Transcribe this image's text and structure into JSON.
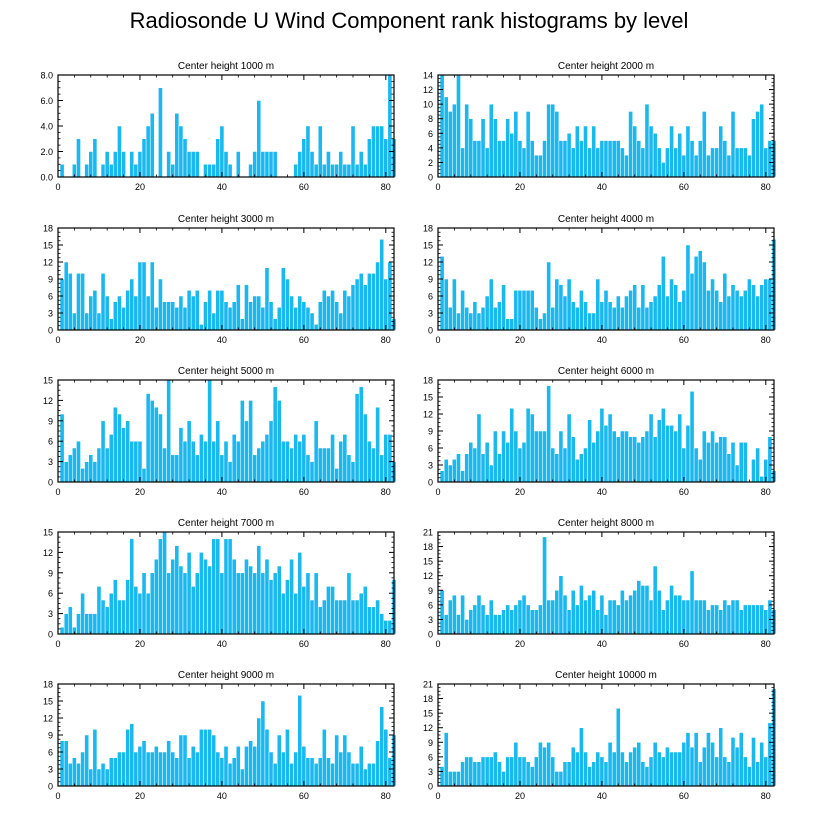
{
  "title": "Radiosonde U Wind Component rank histograms by level",
  "colors": {
    "bar": "#19b8ef",
    "bar_edge": "#0a84b8",
    "axis": "#000000"
  },
  "chart_data": [
    {
      "type": "bar",
      "title": "Center height 1000 m",
      "xlim": [
        0,
        82
      ],
      "ylim": [
        0,
        8
      ],
      "xticks": [
        0,
        20,
        40,
        60,
        80
      ],
      "yticks": [
        0,
        2,
        4,
        6,
        8
      ],
      "ytick_labels": [
        "0.0",
        "2.0",
        "4.0",
        "6.0",
        "8.0"
      ],
      "values": [
        1,
        0,
        0,
        1,
        3,
        0,
        1,
        2,
        3,
        0,
        1,
        2,
        1,
        2,
        4,
        2,
        0,
        2,
        1,
        2,
        3,
        4,
        5,
        0,
        7,
        0,
        2,
        1,
        5,
        4,
        3,
        2,
        2,
        2,
        0,
        1,
        1,
        1,
        3,
        4,
        2,
        1,
        0,
        2,
        0,
        0,
        1,
        2,
        6,
        2,
        2,
        2,
        2,
        0,
        0,
        0,
        0,
        1,
        2,
        3,
        4,
        2,
        1,
        4,
        1,
        2,
        1,
        1,
        2,
        1,
        1,
        4,
        1,
        2,
        1,
        3,
        4,
        4,
        4,
        3,
        8,
        3
      ]
    },
    {
      "type": "bar",
      "title": "Center height 2000 m",
      "xlim": [
        0,
        82
      ],
      "ylim": [
        0,
        14
      ],
      "xticks": [
        0,
        20,
        40,
        60,
        80
      ],
      "yticks": [
        0,
        2,
        4,
        6,
        8,
        10,
        12,
        14
      ],
      "ytick_labels": [
        "0",
        "2",
        "4",
        "6",
        "8",
        "10",
        "12",
        "14"
      ],
      "values": [
        14,
        11,
        9,
        10,
        14,
        4,
        10,
        8,
        5,
        5,
        8,
        4,
        10,
        8,
        5,
        5,
        8,
        6,
        9,
        5,
        4,
        9,
        5,
        3,
        3,
        5,
        10,
        10,
        9,
        5,
        5,
        6,
        4,
        7,
        5,
        7,
        4,
        7,
        4,
        5,
        5,
        5,
        5,
        5,
        4,
        3,
        9,
        7,
        5,
        4,
        10,
        7,
        6,
        4,
        2,
        4,
        7,
        4,
        6,
        3,
        7,
        5,
        3,
        5,
        9,
        3,
        4,
        4,
        7,
        5,
        3,
        9,
        4,
        4,
        4,
        3,
        8,
        9,
        10,
        4,
        5,
        5
      ]
    },
    {
      "type": "bar",
      "title": "Center height 3000 m",
      "xlim": [
        0,
        82
      ],
      "ylim": [
        0,
        18
      ],
      "xticks": [
        0,
        20,
        40,
        60,
        80
      ],
      "yticks": [
        0,
        3,
        6,
        9,
        12,
        15,
        18
      ],
      "ytick_labels": [
        "0",
        "3",
        "6",
        "9",
        "12",
        "15",
        "18"
      ],
      "values": [
        9,
        12,
        10,
        3,
        10,
        10,
        3,
        6,
        7,
        3,
        10,
        6,
        2,
        5,
        6,
        4,
        7,
        9,
        6,
        12,
        12,
        6,
        12,
        4,
        9,
        5,
        5,
        5,
        4,
        6,
        4,
        7,
        6,
        7,
        1,
        5,
        7,
        3,
        7,
        7,
        5,
        4,
        5,
        8,
        2,
        8,
        5,
        6,
        6,
        4,
        11,
        5,
        2,
        4,
        11,
        9,
        6,
        4,
        6,
        5,
        4,
        3,
        1,
        5,
        7,
        6,
        7,
        5,
        3,
        7,
        6,
        8,
        9,
        10,
        8,
        10,
        10,
        12,
        16,
        9,
        12,
        2
      ]
    },
    {
      "type": "bar",
      "title": "Center height 4000 m",
      "xlim": [
        0,
        82
      ],
      "ylim": [
        0,
        18
      ],
      "xticks": [
        0,
        20,
        40,
        60,
        80
      ],
      "yticks": [
        0,
        3,
        6,
        9,
        12,
        15,
        18
      ],
      "ytick_labels": [
        "0",
        "3",
        "6",
        "9",
        "12",
        "15",
        "18"
      ],
      "values": [
        13,
        9,
        4,
        9,
        3,
        7,
        4,
        3,
        5,
        3,
        4,
        6,
        9,
        4,
        5,
        8,
        2,
        2,
        7,
        7,
        7,
        7,
        7,
        4,
        2,
        3,
        12,
        4,
        9,
        8,
        6,
        9,
        5,
        4,
        7,
        5,
        3,
        3,
        9,
        5,
        7,
        5,
        4,
        6,
        4,
        6,
        7,
        8,
        4,
        8,
        4,
        5,
        6,
        8,
        13,
        6,
        9,
        8,
        5,
        7,
        15,
        10,
        13,
        14,
        12,
        7,
        9,
        7,
        5,
        10,
        6,
        8,
        7,
        6,
        7,
        9,
        8,
        6,
        8,
        9,
        9,
        16
      ]
    },
    {
      "type": "bar",
      "title": "Center height 5000 m",
      "xlim": [
        0,
        82
      ],
      "ylim": [
        0,
        15
      ],
      "xticks": [
        0,
        20,
        40,
        60,
        80
      ],
      "yticks": [
        0,
        3,
        6,
        9,
        12,
        15
      ],
      "ytick_labels": [
        "0",
        "3",
        "6",
        "9",
        "12",
        "15"
      ],
      "values": [
        10,
        3,
        4,
        5,
        6,
        2,
        3,
        4,
        3,
        5,
        9,
        5,
        7,
        11,
        10,
        8,
        9,
        6,
        6,
        6,
        2,
        13,
        12,
        11,
        10,
        5,
        15,
        4,
        4,
        8,
        6,
        9,
        6,
        4,
        7,
        6,
        15,
        6,
        9,
        4,
        6,
        3,
        7,
        6,
        12,
        9,
        12,
        4,
        5,
        6,
        7,
        9,
        14,
        12,
        6,
        6,
        5,
        7,
        6,
        7,
        4,
        3,
        9,
        5,
        5,
        5,
        7,
        2,
        6,
        7,
        4,
        3,
        13,
        14,
        10,
        6,
        5,
        11,
        4,
        7,
        7,
        3
      ]
    },
    {
      "type": "bar",
      "title": "Center height 6000 m",
      "xlim": [
        0,
        82
      ],
      "ylim": [
        0,
        18
      ],
      "xticks": [
        0,
        20,
        40,
        60,
        80
      ],
      "yticks": [
        0,
        3,
        6,
        9,
        12,
        15,
        18
      ],
      "ytick_labels": [
        "0",
        "3",
        "6",
        "9",
        "12",
        "15",
        "18"
      ],
      "values": [
        2,
        4,
        3,
        4,
        5,
        2,
        5,
        7,
        6,
        12,
        5,
        7,
        3,
        9,
        5,
        9,
        7,
        13,
        9,
        6,
        7,
        13,
        12,
        9,
        9,
        9,
        17,
        6,
        5,
        9,
        6,
        12,
        8,
        4,
        5,
        6,
        11,
        7,
        9,
        13,
        10,
        12,
        9,
        8,
        9,
        9,
        8,
        8,
        7,
        8,
        9,
        12,
        8,
        11,
        13,
        10,
        10,
        9,
        12,
        6,
        10,
        16,
        6,
        4,
        9,
        7,
        9,
        7,
        8,
        8,
        5,
        7,
        3,
        7,
        7,
        0,
        4,
        6,
        1,
        4,
        8,
        2
      ]
    },
    {
      "type": "bar",
      "title": "Center height 7000 m",
      "xlim": [
        0,
        82
      ],
      "ylim": [
        0,
        15
      ],
      "xticks": [
        0,
        20,
        40,
        60,
        80
      ],
      "yticks": [
        0,
        3,
        6,
        9,
        12,
        15
      ],
      "ytick_labels": [
        "0",
        "3",
        "6",
        "9",
        "12",
        "15"
      ],
      "values": [
        1,
        3,
        4,
        1,
        3,
        6,
        3,
        3,
        3,
        7,
        5,
        4,
        6,
        8,
        5,
        5,
        8,
        14,
        7,
        6,
        9,
        6,
        9,
        11,
        14,
        15,
        9,
        11,
        13,
        10,
        9,
        12,
        7,
        9,
        12,
        11,
        10,
        14,
        14,
        9,
        14,
        14,
        11,
        9,
        9,
        11,
        10,
        9,
        13,
        9,
        11,
        8,
        9,
        10,
        6,
        8,
        11,
        6,
        12,
        7,
        9,
        5,
        9,
        4,
        5,
        7,
        7,
        5,
        5,
        5,
        9,
        5,
        5,
        6,
        7,
        4,
        4,
        5,
        3,
        2,
        2,
        8
      ]
    },
    {
      "type": "bar",
      "title": "Center height 8000 m",
      "xlim": [
        0,
        82
      ],
      "ylim": [
        0,
        21
      ],
      "xticks": [
        0,
        20,
        40,
        60,
        80
      ],
      "yticks": [
        0,
        3,
        6,
        9,
        12,
        15,
        18,
        21
      ],
      "ytick_labels": [
        "0",
        "3",
        "6",
        "9",
        "12",
        "15",
        "18",
        "21"
      ],
      "values": [
        9,
        4,
        7,
        8,
        4,
        8,
        3,
        5,
        6,
        8,
        6,
        4,
        7,
        4,
        4,
        5,
        6,
        5,
        6,
        7,
        8,
        6,
        5,
        5,
        6,
        20,
        7,
        7,
        9,
        12,
        8,
        5,
        9,
        6,
        10,
        7,
        8,
        9,
        5,
        8,
        4,
        7,
        7,
        6,
        9,
        7,
        8,
        9,
        11,
        10,
        10,
        7,
        14,
        9,
        5,
        7,
        10,
        8,
        8,
        7,
        7,
        13,
        7,
        7,
        7,
        5,
        6,
        6,
        5,
        7,
        6,
        7,
        7,
        5,
        6,
        6,
        6,
        6,
        6,
        5,
        7,
        5
      ]
    },
    {
      "type": "bar",
      "title": "Center height 9000 m",
      "xlim": [
        0,
        82
      ],
      "ylim": [
        0,
        18
      ],
      "xticks": [
        0,
        20,
        40,
        60,
        80
      ],
      "yticks": [
        0,
        3,
        6,
        9,
        12,
        15,
        18
      ],
      "ytick_labels": [
        "0",
        "3",
        "6",
        "9",
        "12",
        "15",
        "18"
      ],
      "values": [
        8,
        8,
        4,
        5,
        4,
        6,
        9,
        3,
        10,
        3,
        4,
        3,
        5,
        5,
        6,
        6,
        10,
        11,
        6,
        7,
        8,
        6,
        6,
        7,
        6,
        6,
        8,
        6,
        5,
        9,
        9,
        5,
        7,
        6,
        10,
        10,
        10,
        9,
        6,
        5,
        7,
        4,
        5,
        7,
        3,
        7,
        8,
        7,
        12,
        15,
        10,
        6,
        4,
        9,
        6,
        10,
        4,
        6,
        16,
        7,
        5,
        5,
        4,
        5,
        10,
        5,
        4,
        9,
        6,
        9,
        6,
        4,
        4,
        7,
        3,
        4,
        4,
        8,
        14,
        10,
        5,
        9
      ]
    },
    {
      "type": "bar",
      "title": "Center height 10000 m",
      "xlim": [
        0,
        82
      ],
      "ylim": [
        0,
        21
      ],
      "xticks": [
        0,
        20,
        40,
        60,
        80
      ],
      "yticks": [
        0,
        3,
        6,
        9,
        12,
        15,
        18,
        21
      ],
      "ytick_labels": [
        "0",
        "3",
        "6",
        "9",
        "12",
        "15",
        "18",
        "21"
      ],
      "values": [
        4,
        11,
        3,
        3,
        3,
        5,
        6,
        6,
        5,
        5,
        6,
        6,
        6,
        7,
        5,
        3,
        6,
        6,
        9,
        6,
        6,
        5,
        4,
        6,
        9,
        8,
        9,
        6,
        3,
        3,
        5,
        5,
        8,
        7,
        12,
        7,
        4,
        5,
        7,
        6,
        5,
        9,
        7,
        16,
        7,
        5,
        7,
        8,
        9,
        5,
        4,
        6,
        9,
        7,
        6,
        8,
        7,
        7,
        7,
        9,
        11,
        8,
        11,
        5,
        8,
        11,
        9,
        6,
        12,
        6,
        5,
        10,
        8,
        11,
        6,
        4,
        10,
        5,
        9,
        6,
        13,
        20
      ]
    }
  ]
}
